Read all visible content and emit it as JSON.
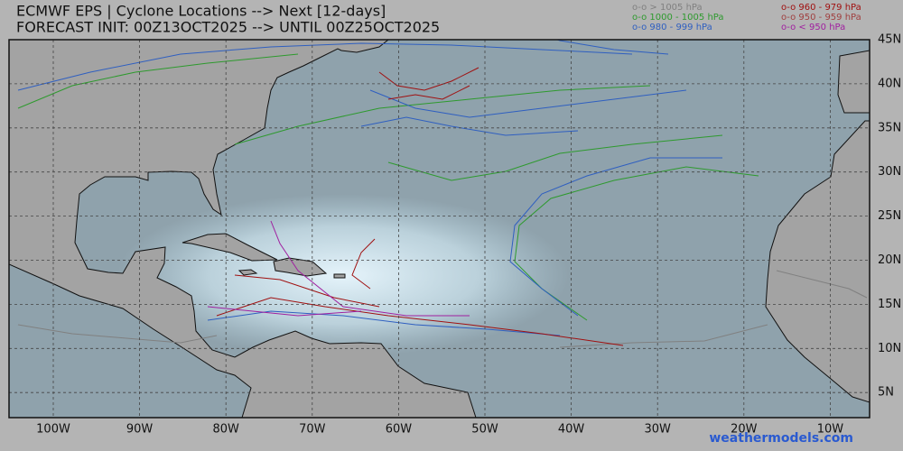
{
  "header": {
    "title": "ECMWF EPS | Cyclone Locations --> Next [12-days]",
    "subtitle": "FORECAST INIT: 00Z13OCT2025 --> UNTIL 00Z25OCT2025"
  },
  "legend": [
    {
      "label": "o-o > 1005 hPa",
      "color": "#808080"
    },
    {
      "label": "o-o 1000 - 1005 hPa",
      "color": "#2e9a2e"
    },
    {
      "label": "o-o 980 - 999 hPa",
      "color": "#2f5fc0"
    },
    {
      "label": "o-o 960 - 979 hPa",
      "color": "#a01010"
    },
    {
      "label": "o-o 950 - 959 hPa",
      "color": "#a04040"
    },
    {
      "label": "o-o < 950 hPa",
      "color": "#a020a0"
    }
  ],
  "lon_labels": [
    "100W",
    "90W",
    "80W",
    "70W",
    "60W",
    "50W",
    "40W",
    "30W",
    "20W",
    "10W"
  ],
  "lat_labels": [
    "45N",
    "40N",
    "35N",
    "30N",
    "25N",
    "20N",
    "15N",
    "10N",
    "5N"
  ],
  "watermark": "weathermodels.com"
}
